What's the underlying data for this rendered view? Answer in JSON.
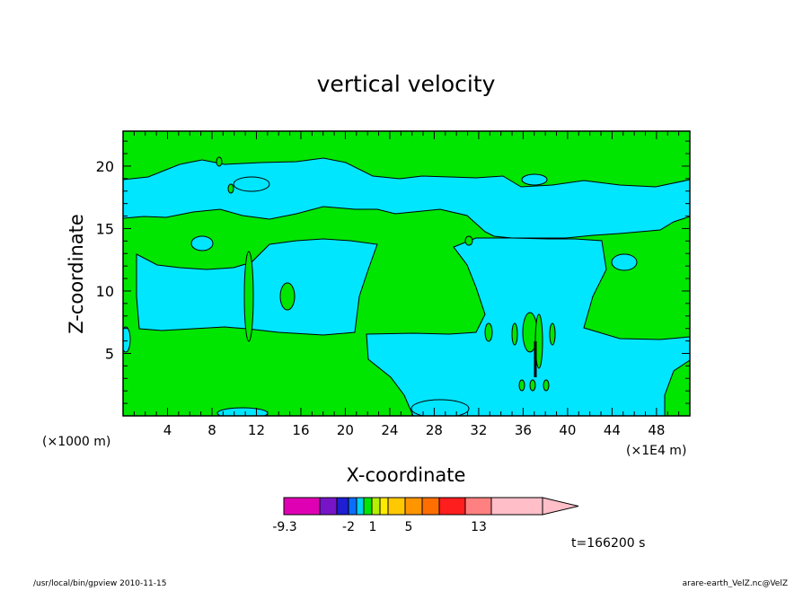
{
  "chart_data": {
    "type": "heatmap",
    "title": "vertical velocity",
    "xlabel": "X-coordinate",
    "ylabel": "Z-coordinate",
    "x_unit_label": "(×1000 m)",
    "x_unit_label_right": "(×1E4 m)",
    "x_ticks": [
      4,
      8,
      12,
      16,
      20,
      24,
      28,
      32,
      36,
      40,
      44,
      48
    ],
    "y_ticks": [
      5,
      10,
      15,
      20
    ],
    "xlim": [
      0,
      51
    ],
    "ylim": [
      0,
      22.8
    ],
    "grid": false,
    "contour_colors": {
      "positive": "#00e600",
      "negative": "#00e6ff"
    },
    "colorbar": {
      "tick_labels": [
        "-9.3",
        "-2",
        "1",
        "5",
        "13"
      ],
      "colors": [
        "#e000b4",
        "#7814c8",
        "#1e1ed2",
        "#0a6efa",
        "#00d2f0",
        "#00e600",
        "#b4f000",
        "#ffeb00",
        "#ffc800",
        "#ff9600",
        "#ff6e00",
        "#ff1e1e",
        "#ff8080",
        "#ffbec8"
      ]
    },
    "time_label": "t=166200 s",
    "footer_left": "/usr/local/bin/gpview   2010-11-15",
    "footer_right": "arare-earth_VelZ.nc@VelZ"
  }
}
